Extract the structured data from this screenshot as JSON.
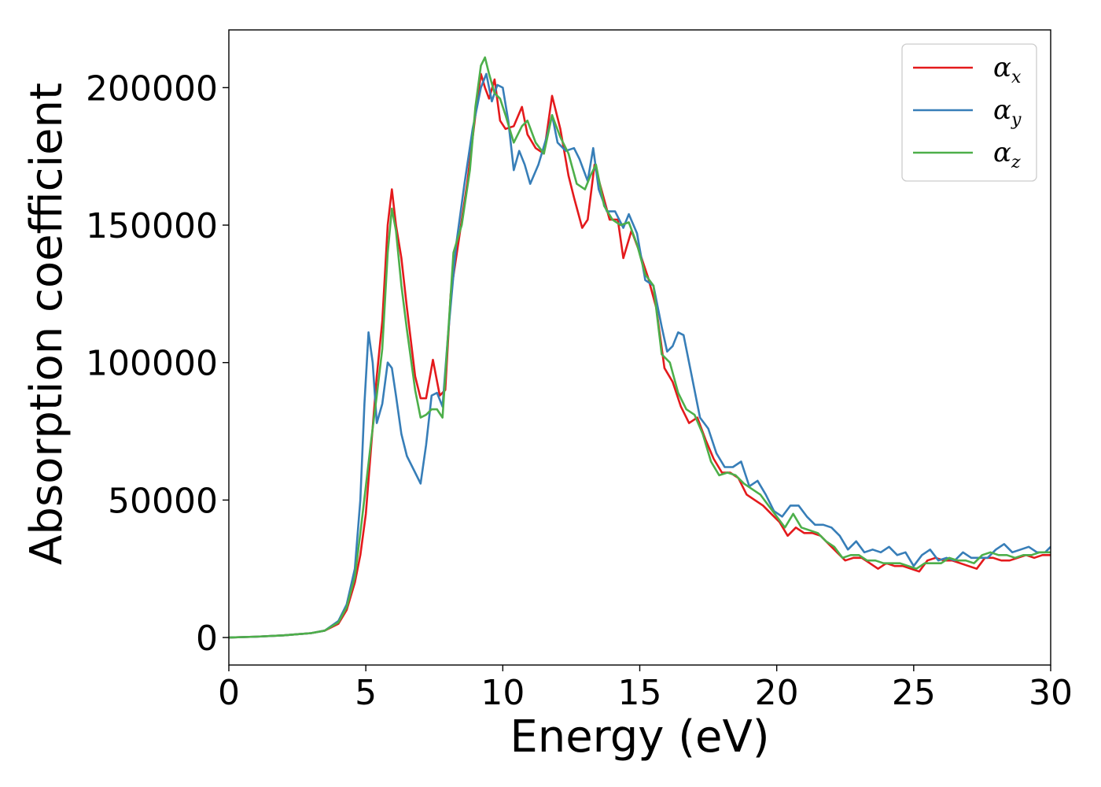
{
  "chart_data": {
    "type": "line",
    "title": "",
    "xlabel": "Energy (eV)",
    "ylabel": "Absorption coefficient",
    "xlim": [
      0,
      30
    ],
    "ylim": [
      -10000,
      221000
    ],
    "xticks": [
      0,
      5,
      10,
      15,
      20,
      25,
      30
    ],
    "xtick_labels": [
      "0",
      "5",
      "10",
      "15",
      "20",
      "25",
      "30"
    ],
    "yticks": [
      0,
      50000,
      100000,
      150000,
      200000
    ],
    "ytick_labels": [
      "0",
      "50000",
      "100000",
      "150000",
      "200000"
    ],
    "grid": false,
    "legend_position": "top-right",
    "series": [
      {
        "name": "α",
        "subscript": "x",
        "color": "#e41a1c",
        "x": [
          0,
          1,
          2,
          3,
          3.5,
          4,
          4.3,
          4.6,
          4.8,
          5.0,
          5.2,
          5.4,
          5.6,
          5.8,
          5.95,
          6.1,
          6.3,
          6.5,
          6.8,
          7.0,
          7.2,
          7.45,
          7.7,
          7.9,
          8.1,
          8.4,
          8.7,
          9.0,
          9.2,
          9.35,
          9.5,
          9.7,
          9.9,
          10.1,
          10.4,
          10.7,
          10.9,
          11.2,
          11.5,
          11.8,
          12.1,
          12.4,
          12.6,
          12.9,
          13.1,
          13.35,
          13.6,
          13.9,
          14.2,
          14.4,
          14.7,
          15.0,
          15.3,
          15.6,
          15.9,
          16.2,
          16.5,
          16.8,
          17.1,
          17.4,
          17.7,
          18.0,
          18.3,
          18.6,
          18.9,
          19.2,
          19.5,
          19.8,
          20.1,
          20.4,
          20.7,
          21.0,
          21.3,
          21.6,
          21.9,
          22.2,
          22.5,
          22.8,
          23.1,
          23.4,
          23.7,
          24.0,
          24.3,
          24.6,
          24.9,
          25.2,
          25.5,
          25.8,
          26.1,
          26.4,
          26.7,
          27.0,
          27.3,
          27.6,
          27.9,
          28.2,
          28.5,
          28.8,
          29.1,
          29.4,
          29.7,
          30
        ],
        "y": [
          0,
          300,
          800,
          1600,
          2500,
          5000,
          10000,
          20000,
          30000,
          45000,
          70000,
          95000,
          115000,
          150000,
          163000,
          150000,
          138000,
          120000,
          95000,
          87000,
          87000,
          101000,
          88000,
          90000,
          125000,
          145000,
          165000,
          190000,
          205000,
          200000,
          196000,
          203000,
          188000,
          185000,
          186000,
          193000,
          183000,
          178000,
          176000,
          197000,
          185000,
          168000,
          160000,
          149000,
          152000,
          172000,
          163000,
          152000,
          152000,
          138000,
          148000,
          140000,
          131000,
          120000,
          98000,
          93000,
          84000,
          78000,
          80000,
          72000,
          65000,
          60000,
          60000,
          58000,
          52000,
          50000,
          48000,
          45000,
          42000,
          37000,
          40000,
          38000,
          38000,
          37000,
          34000,
          31000,
          28000,
          29000,
          29000,
          27000,
          25000,
          27000,
          26000,
          26000,
          25000,
          24000,
          28000,
          29000,
          28000,
          28000,
          27000,
          26000,
          25000,
          29000,
          29000,
          28000,
          28000,
          29000,
          30000,
          29000,
          30000,
          30000
        ]
      },
      {
        "name": "α",
        "subscript": "y",
        "color": "#377eb8",
        "x": [
          0,
          1,
          2,
          3,
          3.5,
          4,
          4.3,
          4.6,
          4.8,
          4.95,
          5.1,
          5.25,
          5.4,
          5.6,
          5.8,
          5.95,
          6.1,
          6.3,
          6.5,
          6.8,
          7.0,
          7.2,
          7.4,
          7.6,
          7.8,
          8.0,
          8.3,
          8.6,
          8.9,
          9.2,
          9.4,
          9.6,
          9.8,
          10.0,
          10.2,
          10.4,
          10.6,
          10.8,
          11.0,
          11.3,
          11.6,
          11.8,
          12.0,
          12.3,
          12.6,
          12.8,
          13.1,
          13.3,
          13.5,
          13.8,
          14.1,
          14.4,
          14.6,
          14.9,
          15.2,
          15.5,
          15.8,
          16.0,
          16.2,
          16.4,
          16.6,
          16.9,
          17.2,
          17.5,
          17.8,
          18.1,
          18.4,
          18.7,
          19.0,
          19.3,
          19.6,
          19.9,
          20.2,
          20.5,
          20.8,
          21.1,
          21.4,
          21.7,
          22.0,
          22.3,
          22.6,
          22.9,
          23.2,
          23.5,
          23.8,
          24.1,
          24.4,
          24.7,
          25.0,
          25.3,
          25.6,
          25.9,
          26.2,
          26.5,
          26.8,
          27.1,
          27.4,
          27.7,
          28.0,
          28.3,
          28.6,
          28.9,
          29.2,
          29.5,
          29.8,
          30
        ],
        "y": [
          0,
          300,
          800,
          1600,
          2500,
          6000,
          12000,
          25000,
          50000,
          85000,
          111000,
          100000,
          78000,
          85000,
          100000,
          98000,
          88000,
          74000,
          66000,
          60000,
          56000,
          70000,
          88000,
          89000,
          84000,
          110000,
          143000,
          165000,
          185000,
          200000,
          205000,
          195000,
          201000,
          200000,
          188000,
          170000,
          177000,
          172000,
          165000,
          172000,
          182000,
          190000,
          180000,
          177000,
          178000,
          174000,
          166000,
          178000,
          163000,
          155000,
          155000,
          149000,
          154000,
          147000,
          130000,
          128000,
          113000,
          104000,
          106000,
          111000,
          110000,
          95000,
          80000,
          76000,
          67000,
          62000,
          62000,
          64000,
          55000,
          57000,
          52000,
          46000,
          44000,
          48000,
          48000,
          44000,
          41000,
          41000,
          40000,
          37000,
          32000,
          35000,
          31000,
          32000,
          31000,
          33000,
          30000,
          31000,
          26000,
          30000,
          32000,
          28000,
          29000,
          28000,
          31000,
          29000,
          29000,
          29000,
          32000,
          34000,
          31000,
          32000,
          33000,
          31000,
          31000,
          33000
        ]
      },
      {
        "name": "α",
        "subscript": "z",
        "color": "#4daf4a",
        "x": [
          0,
          1,
          2,
          3,
          3.5,
          4,
          4.3,
          4.6,
          4.8,
          5.0,
          5.2,
          5.4,
          5.6,
          5.8,
          5.95,
          6.1,
          6.3,
          6.5,
          6.8,
          7.0,
          7.2,
          7.4,
          7.6,
          7.8,
          8.0,
          8.2,
          8.5,
          8.8,
          9.0,
          9.2,
          9.35,
          9.5,
          9.7,
          9.9,
          10.1,
          10.4,
          10.7,
          10.9,
          11.2,
          11.5,
          11.8,
          12.1,
          12.4,
          12.7,
          13.0,
          13.2,
          13.4,
          13.7,
          14.0,
          14.3,
          14.6,
          14.9,
          15.2,
          15.5,
          15.8,
          16.1,
          16.4,
          16.7,
          17.0,
          17.3,
          17.6,
          17.9,
          18.2,
          18.5,
          18.8,
          19.1,
          19.4,
          19.7,
          20.0,
          20.3,
          20.6,
          20.9,
          21.2,
          21.5,
          21.8,
          22.1,
          22.4,
          22.7,
          23.0,
          23.3,
          23.6,
          23.9,
          24.2,
          24.5,
          24.8,
          25.1,
          25.4,
          25.7,
          26.0,
          26.3,
          26.6,
          26.9,
          27.2,
          27.5,
          27.8,
          28.1,
          28.4,
          28.7,
          29.0,
          29.3,
          29.6,
          30
        ],
        "y": [
          0,
          300,
          800,
          1600,
          2500,
          5500,
          11000,
          22000,
          38000,
          55000,
          72000,
          88000,
          105000,
          140000,
          156000,
          148000,
          128000,
          112000,
          90000,
          80000,
          81000,
          83000,
          83000,
          80000,
          110000,
          140000,
          150000,
          170000,
          193000,
          208000,
          211000,
          205000,
          198000,
          196000,
          190000,
          180000,
          186000,
          188000,
          180000,
          176000,
          190000,
          182000,
          176000,
          165000,
          163000,
          168000,
          172000,
          157000,
          152000,
          150000,
          151000,
          143000,
          132000,
          128000,
          103000,
          100000,
          89000,
          83000,
          81000,
          74000,
          64000,
          59000,
          60000,
          59000,
          56000,
          54000,
          52000,
          48000,
          44000,
          40000,
          45000,
          40000,
          39000,
          38000,
          35000,
          33000,
          29000,
          30000,
          30000,
          28000,
          28000,
          27000,
          27000,
          27000,
          26000,
          25000,
          27000,
          27000,
          27000,
          29000,
          28000,
          28000,
          27000,
          30000,
          31000,
          30000,
          30000,
          29000,
          30000,
          30000,
          31000,
          31000
        ]
      }
    ]
  }
}
